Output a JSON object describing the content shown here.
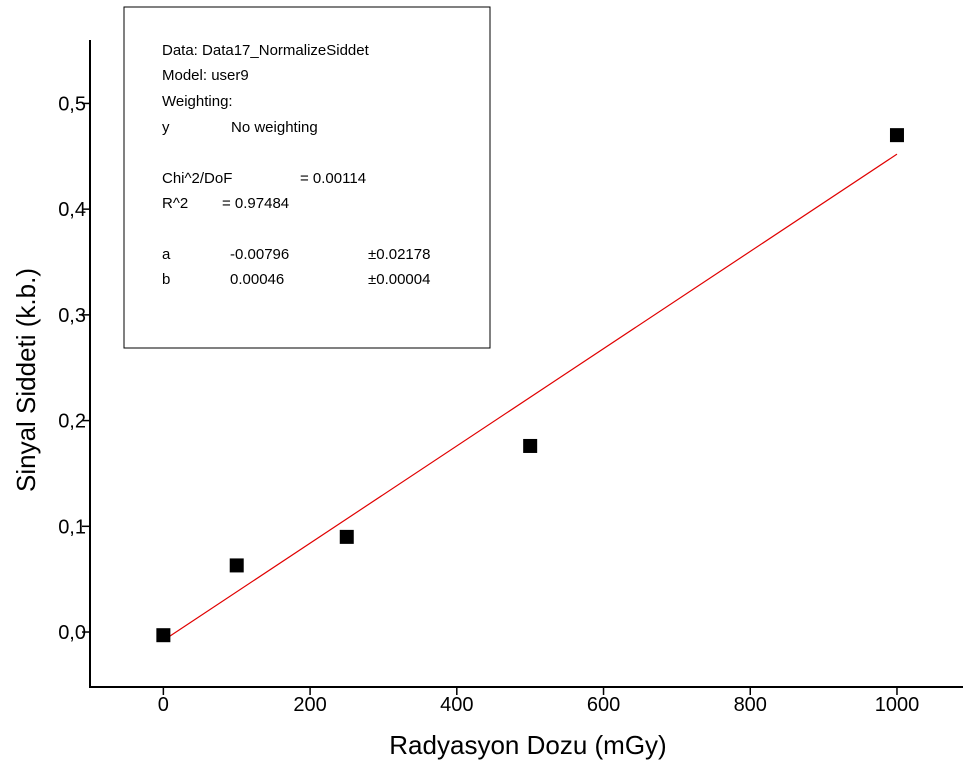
{
  "chart_data": {
    "type": "scatter",
    "xlabel": "Radyasyon Dozu (mGy)",
    "ylabel": "Sinyal Siddeti (k.b.)",
    "xlim": [
      -100,
      1090
    ],
    "ylim": [
      -0.052,
      0.56
    ],
    "x_ticks": [
      0,
      200,
      400,
      600,
      800,
      1000
    ],
    "x_tick_labels": [
      "0",
      "200",
      "400",
      "600",
      "800",
      "1000"
    ],
    "y_ticks": [
      0.0,
      0.1,
      0.2,
      0.3,
      0.4,
      0.5
    ],
    "y_tick_labels": [
      "0,0",
      "0,1",
      "0,2",
      "0,3",
      "0,4",
      "0,5"
    ],
    "grid": false,
    "series": [
      {
        "marker": "square",
        "color": "#000000",
        "x": [
          0,
          100,
          250,
          500,
          1000
        ],
        "y": [
          -0.003,
          0.063,
          0.09,
          0.176,
          0.47
        ]
      }
    ],
    "fit": {
      "color": "#e00000",
      "a": -0.00796,
      "b": 0.00046,
      "x_range": [
        0,
        1000
      ]
    },
    "info_box": {
      "line1": "Data: Data17_NormalizeSiddet",
      "line2": "Model: user9",
      "line3": "Weighting:",
      "weight_key": "y",
      "weight_value": "No weighting",
      "chi_label": "Chi^2/DoF",
      "chi_value": "= 0.00114",
      "r2_label": "R^2",
      "r2_value": "=  0.97484",
      "param_a_name": "a",
      "param_a_value": "-0.00796",
      "param_a_err": "±0.02178",
      "param_b_name": "b",
      "param_b_value": "0.00046",
      "param_b_err": "±0.00004"
    }
  }
}
